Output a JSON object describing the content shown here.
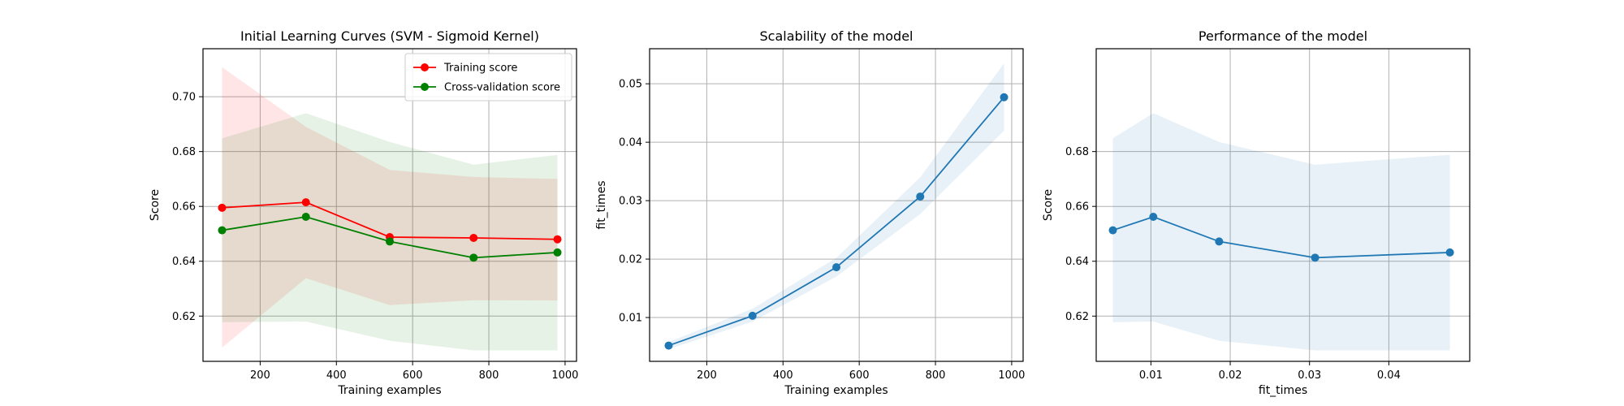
{
  "chart_data": [
    {
      "type": "line",
      "title": "Initial Learning Curves (SVM - Sigmoid Kernel)",
      "xlabel": "Training examples",
      "ylabel": "Score",
      "xlim": [
        50,
        1030
      ],
      "ylim": [
        0.6035,
        0.7175
      ],
      "xticks": [
        200,
        400,
        600,
        800,
        1000
      ],
      "yticks": [
        0.62,
        0.64,
        0.66,
        0.68,
        0.7
      ],
      "grid": true,
      "legend": "top-right",
      "x": [
        100,
        320,
        540,
        760,
        980
      ],
      "series": [
        {
          "name": "Training score",
          "color": "#ff0000",
          "values": [
            0.6595,
            0.6615,
            0.6488,
            0.6485,
            0.648
          ],
          "lower": [
            0.6085,
            0.6338,
            0.624,
            0.6258,
            0.6257
          ],
          "upper": [
            0.7108,
            0.689,
            0.6733,
            0.6707,
            0.67
          ],
          "band_color": "#ff0000"
        },
        {
          "name": "Cross-validation score",
          "color": "#008000",
          "values": [
            0.6513,
            0.6562,
            0.6472,
            0.6413,
            0.6432
          ],
          "lower": [
            0.6178,
            0.618,
            0.611,
            0.6075,
            0.6075
          ],
          "upper": [
            0.6848,
            0.694,
            0.6835,
            0.6752,
            0.6788
          ],
          "band_color": "#008000"
        }
      ]
    },
    {
      "type": "line",
      "title": "Scalability of the model",
      "xlabel": "Training examples",
      "ylabel": "fit_times",
      "xlim": [
        50,
        1030
      ],
      "ylim": [
        0.0025,
        0.056
      ],
      "xticks": [
        200,
        400,
        600,
        800,
        1000
      ],
      "yticks": [
        0.01,
        0.02,
        0.03,
        0.04,
        0.05
      ],
      "grid": true,
      "x": [
        100,
        320,
        540,
        760,
        980
      ],
      "series": [
        {
          "color": "#1f77b4",
          "values": [
            0.0052,
            0.0103,
            0.0186,
            0.0307,
            0.0477
          ],
          "lower": [
            0.0046,
            0.0093,
            0.017,
            0.0277,
            0.042
          ],
          "upper": [
            0.0058,
            0.0115,
            0.0202,
            0.034,
            0.0535
          ],
          "band_color": "#1f77b4"
        }
      ]
    },
    {
      "type": "line",
      "title": "Performance of the model",
      "xlabel": "fit_times",
      "ylabel": "Score",
      "xlim": [
        0.0031,
        0.0502
      ],
      "ylim": [
        0.6035,
        0.7175
      ],
      "xticks": [
        0.01,
        0.02,
        0.03,
        0.04
      ],
      "yticks": [
        0.62,
        0.64,
        0.66,
        0.68
      ],
      "grid": true,
      "x": [
        0.0052,
        0.0103,
        0.0186,
        0.0307,
        0.0477
      ],
      "series": [
        {
          "color": "#1f77b4",
          "values": [
            0.6513,
            0.6562,
            0.6472,
            0.6413,
            0.6432
          ],
          "lower": [
            0.6178,
            0.618,
            0.611,
            0.6075,
            0.6075
          ],
          "upper": [
            0.6848,
            0.694,
            0.6835,
            0.6752,
            0.6788
          ],
          "band_color": "#1f77b4"
        }
      ]
    }
  ]
}
